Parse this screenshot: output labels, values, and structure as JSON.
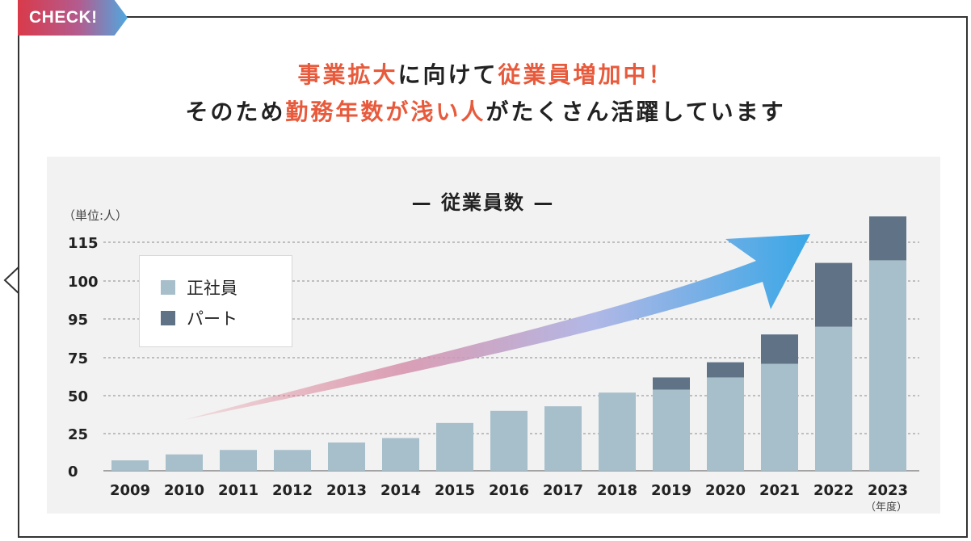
{
  "badge": "CHECK!",
  "headline": {
    "line1": [
      {
        "text": "事業拡大",
        "hl": true
      },
      {
        "text": "に向けて",
        "hl": false
      },
      {
        "text": "従業員増加中！",
        "hl": true
      }
    ],
    "line2": [
      {
        "text": "そのため",
        "hl": false
      },
      {
        "text": "勤務年数が浅い人",
        "hl": true
      },
      {
        "text": "がたくさん活躍しています",
        "hl": false
      }
    ]
  },
  "colors": {
    "accent": "#e85a3c",
    "full_time": "#a7bfcb",
    "part_time": "#5f7286",
    "arrow_start": "#e07080",
    "arrow_end": "#3aa7e6"
  },
  "chart_data": {
    "type": "bar",
    "stacked": true,
    "title": "— 従業員数 —",
    "unit_label": "（単位:人）",
    "x_unit_label": "（年度）",
    "categories": [
      "2009",
      "2010",
      "2011",
      "2012",
      "2013",
      "2014",
      "2015",
      "2016",
      "2017",
      "2018",
      "2019",
      "2020",
      "2021",
      "2022",
      "2023"
    ],
    "yticks": [
      0,
      25,
      50,
      75,
      95,
      100,
      115
    ],
    "series": [
      {
        "name": "正社員",
        "color": "#a7bfcb",
        "values": [
          7,
          11,
          14,
          14,
          19,
          22,
          32,
          40,
          43,
          52,
          54,
          62,
          71,
          91,
          108
        ]
      },
      {
        "name": "パート",
        "color": "#5f7286",
        "values": [
          0,
          0,
          0,
          0,
          0,
          0,
          0,
          0,
          0,
          0,
          8,
          10,
          16,
          16,
          17
        ]
      }
    ],
    "grid": true,
    "legend_position": "top-left",
    "annotation": "upward-arrow"
  }
}
